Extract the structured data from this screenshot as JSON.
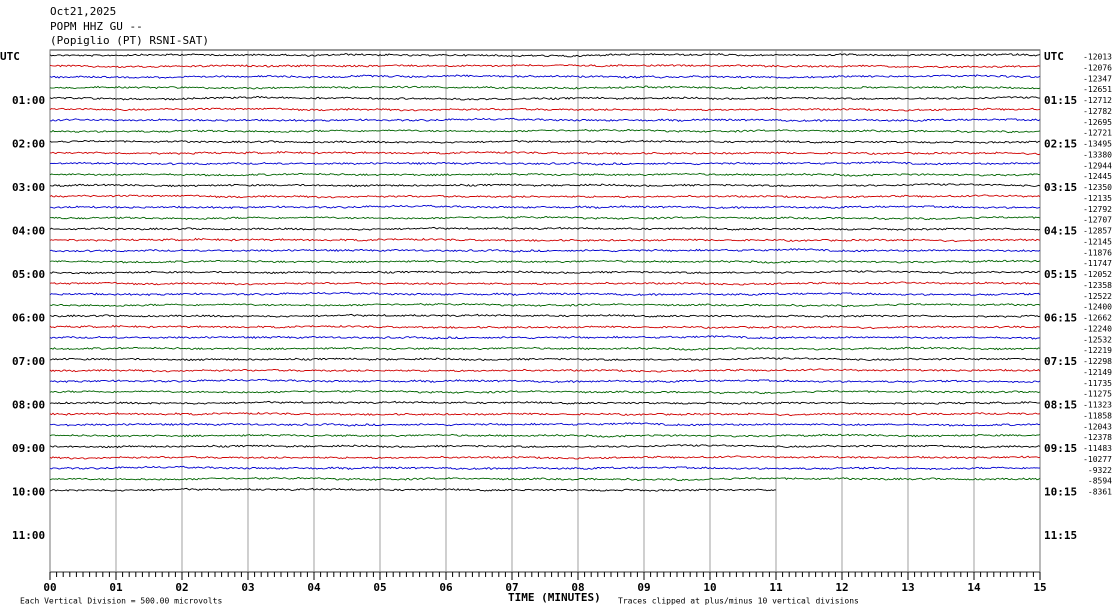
{
  "header": {
    "date": "Oct21,2025",
    "station": "POPM HHZ GU --",
    "location": "(Popiglio (PT) RSNI-SAT)"
  },
  "left_labels": [
    "UTC",
    "01:00",
    "02:00",
    "03:00",
    "04:00",
    "05:00",
    "06:00",
    "07:00",
    "08:00",
    "09:00",
    "10:00",
    "11:00"
  ],
  "right_labels": [
    "UTC",
    "01:15",
    "02:15",
    "03:15",
    "04:15",
    "05:15",
    "06:15",
    "07:15",
    "08:15",
    "09:15",
    "10:15",
    "11:15"
  ],
  "trace_offsets": [
    "-12013",
    "-12076",
    "-12347",
    "-12651",
    "-12712",
    "-12782",
    "-12695",
    "-12721",
    "-13495",
    "-13380",
    "-12944",
    "-12445",
    "-12350",
    "-12135",
    "-12792",
    "-12707",
    "-12857",
    "-12145",
    "-11876",
    "-11747",
    "-12052",
    "-12358",
    "-12522",
    "-12400",
    "-12662",
    "-12240",
    "-12532",
    "-12219",
    "-12298",
    "-12149",
    "-11735",
    "-11275",
    "-11323",
    "-11858",
    "-12043",
    "-12378",
    "-11483",
    "-10277",
    "-9322",
    "-8594",
    "-8361"
  ],
  "trace_colors": [
    "#000000",
    "#d00000",
    "#0000d0",
    "#006400"
  ],
  "x_axis": {
    "ticks": [
      "00",
      "01",
      "02",
      "03",
      "04",
      "05",
      "06",
      "07",
      "08",
      "09",
      "10",
      "11",
      "12",
      "13",
      "14",
      "15"
    ],
    "label": "TIME (MINUTES)"
  },
  "footer": {
    "scale": "Each Vertical Division =  500.00 microvolts",
    "clip": "Traces clipped at plus/minus 10 vertical divisions"
  }
}
